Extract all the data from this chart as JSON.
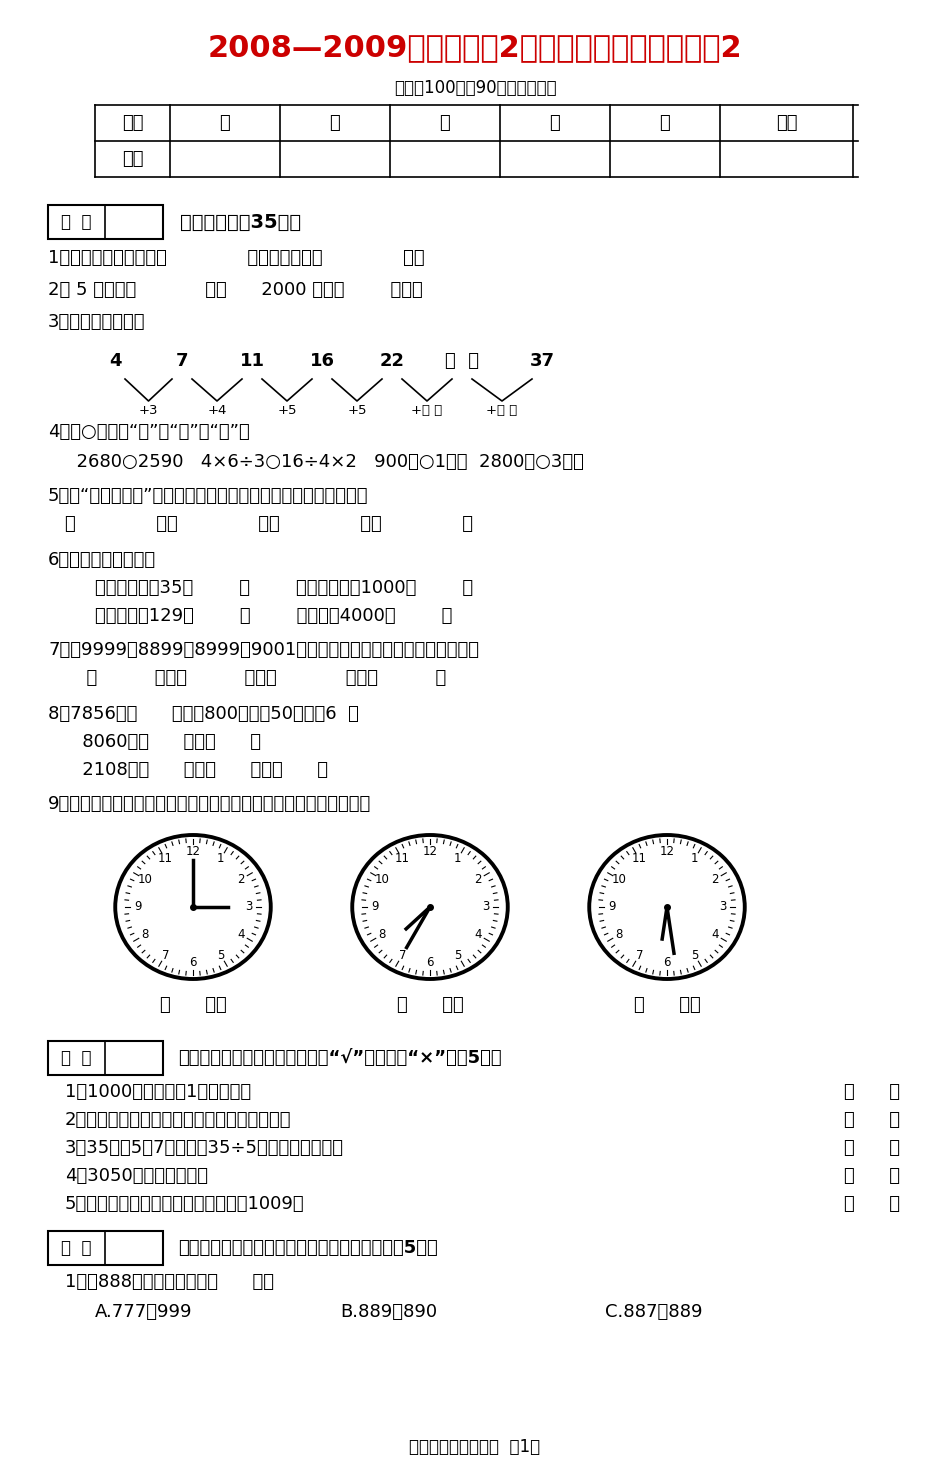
{
  "title": "2008—2009学年度小学2年级（下）数学期末试题2",
  "subtitle": "（满分100分，90分钟内完成）",
  "bg_color": "#ffffff",
  "title_color": "#cc0000",
  "text_color": "#000000",
  "table_headers": [
    "题号",
    "一",
    "二",
    "三",
    "四",
    "五",
    "总分"
  ],
  "table_row": [
    "得分",
    "",
    "",
    "",
    "",
    "",
    ""
  ],
  "section1_header": "一、填空。（35分）",
  "section2_header": "二、判断。（正确的在括号内打“√”，错的打“×”）（5分）",
  "section3_header": "三、选择。（把正确答案的字母填在括号里）（5分）",
  "footer": "二年级数学（人教）  第1页",
  "q1": "1、三千二百零八写作（              ），一万写作（              ）。",
  "q2": "2、 5 千克＝（            ）克      2000 克＝（        ）千克",
  "q3": "3、按规律填一填。",
  "q4": "4、在○里填上“＞”、“＜”或“＝”。",
  "q4b": "  2680○2590   4×6÷3○16÷4×2   900克○1千克  2800克○3千克",
  "q5": "5、用“五七三十五”这句口诀写出两个乘法算式和两个除法算式。",
  "q5b": "（              ）（              ）（              ）（              ）",
  "q6": "6、填上合适的单位。",
  "q6a": "小强的体重是35（        ）        两袋加碘盐重1000（        ）",
  "q6b": "一袋方便面129（        ）        一车煤重4000（        ）",
  "q7": "7、把9999、8899、8999、9001这几个数，按照从小到大的顺序排列。",
  "q7b": "  （          ）＜（          ）＜（            ）＜（          ）",
  "q8a": "8、7856＝（      ）＋（800）＋（50）＋（6  ）",
  "q8b": "   8060＝（      ）＋（      ）",
  "q8c": "   2108＝（      ）＋（      ）＋（      ）",
  "q9": "9、下面各钟面上的时针和分针形成什么角？再写出钟面上的时刻。",
  "judge_items": [
    "1、1000克的棉花比1千克鐵轻。",
    "2、一个数的最高位是万位，这个数是五位数。",
    "3、35减去5个7可以写作35÷5，结果是一样的。",
    "4、3050读作三千零五。",
    "5、最大的三位数与最小两位数的和是1009。"
  ],
  "sel_q1": "1、与888相邻的两个数是（      ）。",
  "sel_a": "A.777、999",
  "sel_b": "B.889、890",
  "sel_c": "C.887、889"
}
